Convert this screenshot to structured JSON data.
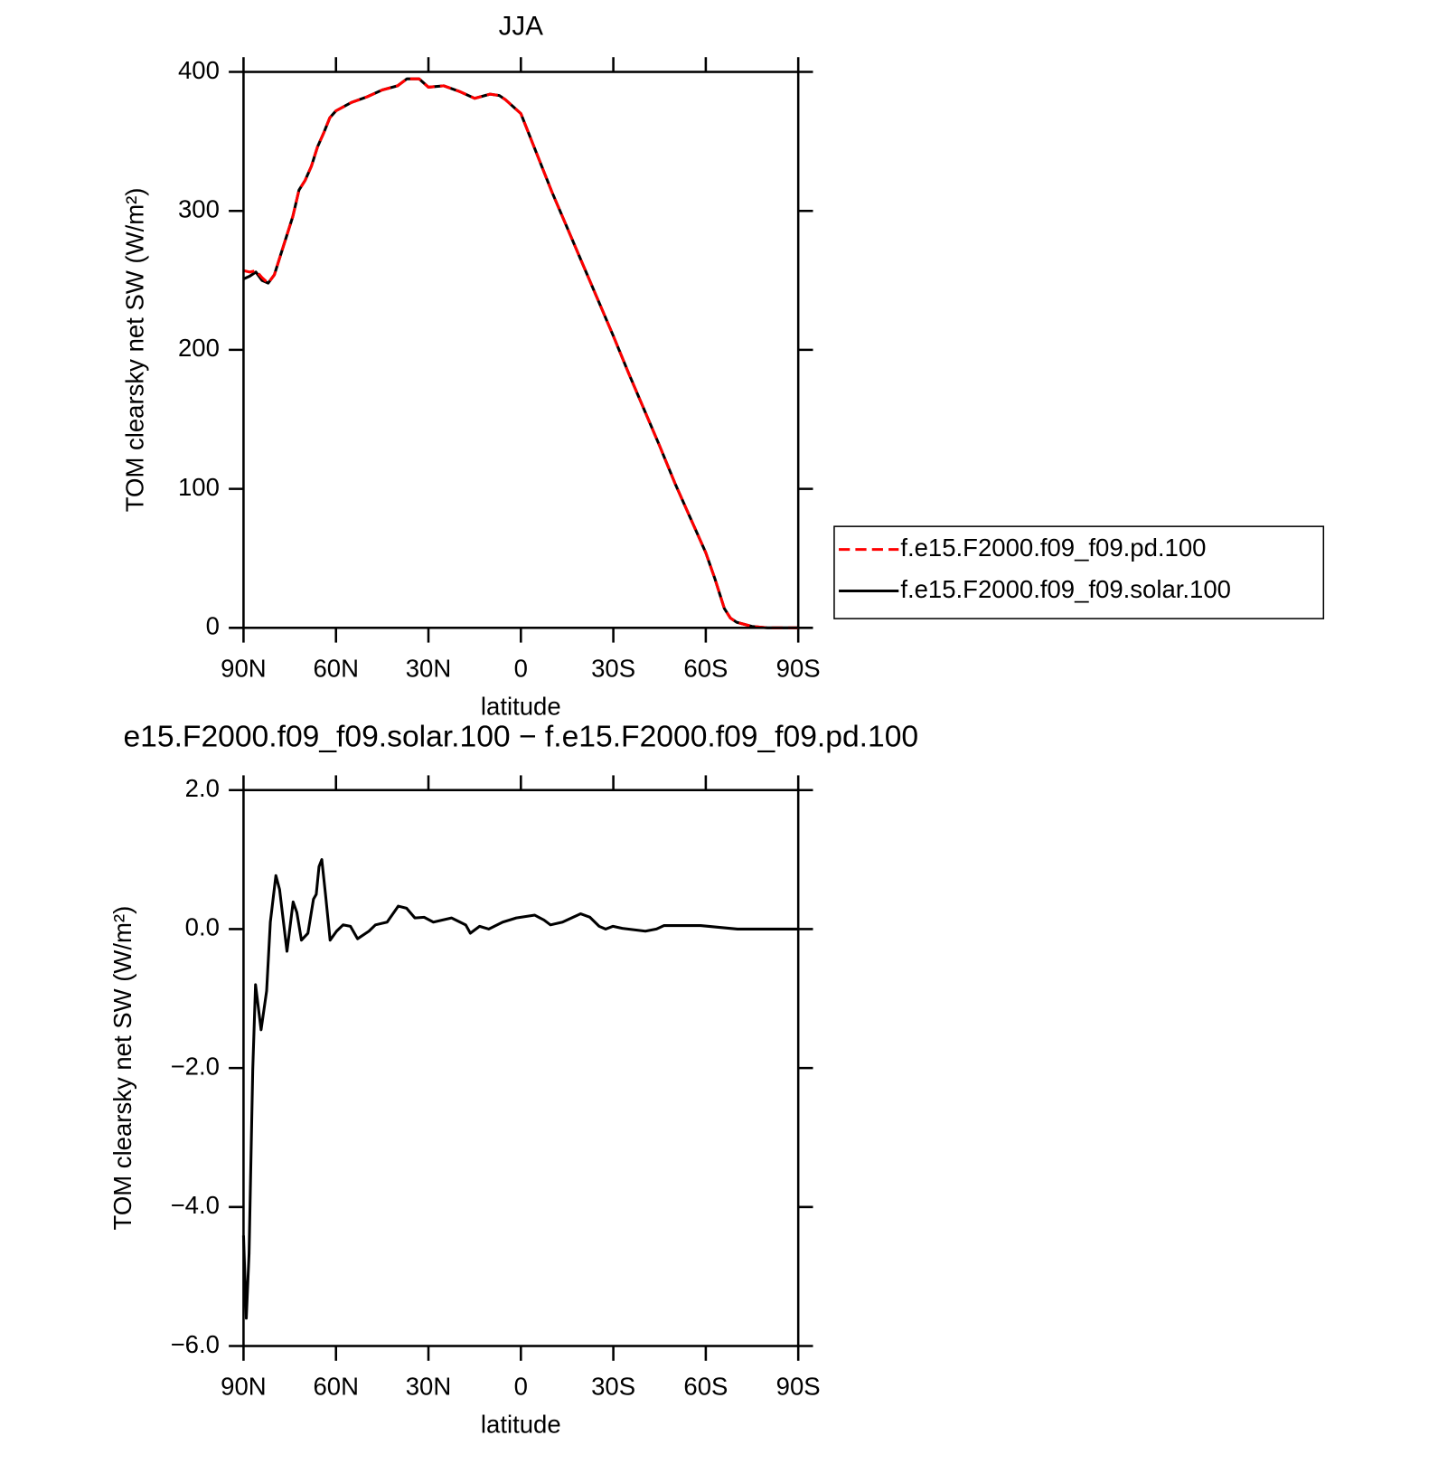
{
  "chart_data": [
    {
      "type": "line",
      "title": "JJA",
      "xlabel": "latitude",
      "ylabel": "TOM clearsky net SW (W/m²)",
      "x": [
        90,
        88,
        86,
        84,
        82,
        80,
        78,
        76,
        74,
        72,
        70,
        68,
        66,
        64,
        62,
        60,
        55,
        50,
        45,
        40,
        37,
        33,
        30,
        25,
        20,
        15,
        10,
        7,
        5,
        0,
        -5,
        -10,
        -15,
        -20,
        -25,
        -30,
        -35,
        -40,
        -45,
        -50,
        -55,
        -60,
        -63,
        -66,
        -68,
        -70,
        -75,
        -80,
        -85,
        -90
      ],
      "series": [
        {
          "name": "f.e15.F2000.f09_f09.pd.100",
          "color": "#ff0000",
          "linestyle": "dashed",
          "values": [
            257,
            256,
            257,
            252,
            248,
            254,
            268,
            282,
            296,
            315,
            322,
            332,
            346,
            356,
            367,
            372,
            378,
            382,
            387,
            390,
            395,
            395,
            389,
            390,
            386,
            381,
            384,
            383,
            380,
            370,
            342,
            314,
            288,
            262,
            236,
            210,
            183,
            157,
            131,
            104,
            79,
            54,
            35,
            14,
            7,
            4,
            1,
            0,
            0,
            0
          ]
        },
        {
          "name": "f.e15.F2000.f09_f09.solar.100",
          "color": "#000000",
          "linestyle": "solid",
          "values": [
            251,
            253,
            256,
            250,
            248,
            254,
            268,
            282,
            296,
            315,
            322,
            332,
            346,
            356,
            367,
            372,
            378,
            382,
            387,
            390,
            395,
            395,
            389,
            390,
            386,
            381,
            384,
            383,
            380,
            370,
            342,
            314,
            288,
            262,
            236,
            210,
            183,
            157,
            131,
            104,
            79,
            54,
            35,
            14,
            7,
            4,
            1,
            0,
            0,
            0
          ]
        }
      ],
      "xlim": [
        90,
        -90
      ],
      "xticks": [
        {
          "value": 90,
          "label": "90N"
        },
        {
          "value": 60,
          "label": "60N"
        },
        {
          "value": 30,
          "label": "30N"
        },
        0,
        {
          "value": -30,
          "label": "30S"
        },
        {
          "value": -60,
          "label": "60S"
        },
        {
          "value": -90,
          "label": "90S"
        }
      ],
      "ylim": [
        0,
        400
      ],
      "yticks": [
        0,
        100,
        200,
        300,
        400
      ],
      "legend": "right"
    },
    {
      "type": "line",
      "title": "e15.F2000.f09_f09.solar.100 − f.e15.F2000.f09_f09.pd.100",
      "xlabel": "latitude",
      "ylabel": "TOM clearsky net SW (W/m²)",
      "x": [
        90,
        89.1,
        88.2,
        87,
        86.1,
        84.3,
        82.5,
        81.3,
        79.5,
        78.3,
        75.9,
        73.9,
        72.7,
        71.2,
        69.1,
        67.3,
        66.4,
        65.5,
        64.6,
        63.4,
        61.9,
        59.8,
        57.7,
        55.3,
        53,
        49.3,
        47.2,
        43.4,
        39.8,
        37.1,
        34.4,
        31.4,
        28.4,
        22.5,
        17.9,
        16.4,
        13.4,
        10.4,
        5.9,
        1.5,
        -4.5,
        -7.5,
        -9.6,
        -13.5,
        -19.4,
        -22.4,
        -25.4,
        -27.5,
        -29.9,
        -32.9,
        -40.4,
        -44,
        -46.4,
        -52.3,
        -58.3,
        -70.3,
        -90
      ],
      "values": [
        -4.41,
        -5.6,
        -4.67,
        -2.02,
        -0.8,
        -1.45,
        -0.89,
        0.1,
        0.77,
        0.57,
        -0.32,
        0.39,
        0.24,
        -0.16,
        -0.06,
        0.43,
        0.5,
        0.9,
        1.0,
        0.5,
        -0.16,
        -0.03,
        0.06,
        0.04,
        -0.14,
        -0.03,
        0.06,
        0.1,
        0.33,
        0.3,
        0.16,
        0.17,
        0.1,
        0.16,
        0.06,
        -0.06,
        0.04,
        0,
        0.1,
        0.16,
        0.2,
        0.13,
        0.06,
        0.1,
        0.22,
        0.17,
        0.04,
        0,
        0.04,
        0.01,
        -0.03,
        0,
        0.05,
        0.05,
        0.05,
        0,
        0
      ],
      "color": "#000000",
      "xlim": [
        90,
        -90
      ],
      "xticks": [
        {
          "value": 90,
          "label": "90N"
        },
        {
          "value": 60,
          "label": "60N"
        },
        {
          "value": 30,
          "label": "30N"
        },
        0,
        {
          "value": -30,
          "label": "30S"
        },
        {
          "value": -60,
          "label": "60S"
        },
        {
          "value": -90,
          "label": "90S"
        }
      ],
      "ylim": [
        -6,
        2
      ],
      "yticks": [
        {
          "value": -6,
          "label": "−6.0"
        },
        {
          "value": -4,
          "label": "−4.0"
        },
        {
          "value": -2,
          "label": "−2.0"
        },
        {
          "value": 0,
          "label": "0.0"
        },
        {
          "value": 2,
          "label": "2.0"
        }
      ]
    }
  ]
}
